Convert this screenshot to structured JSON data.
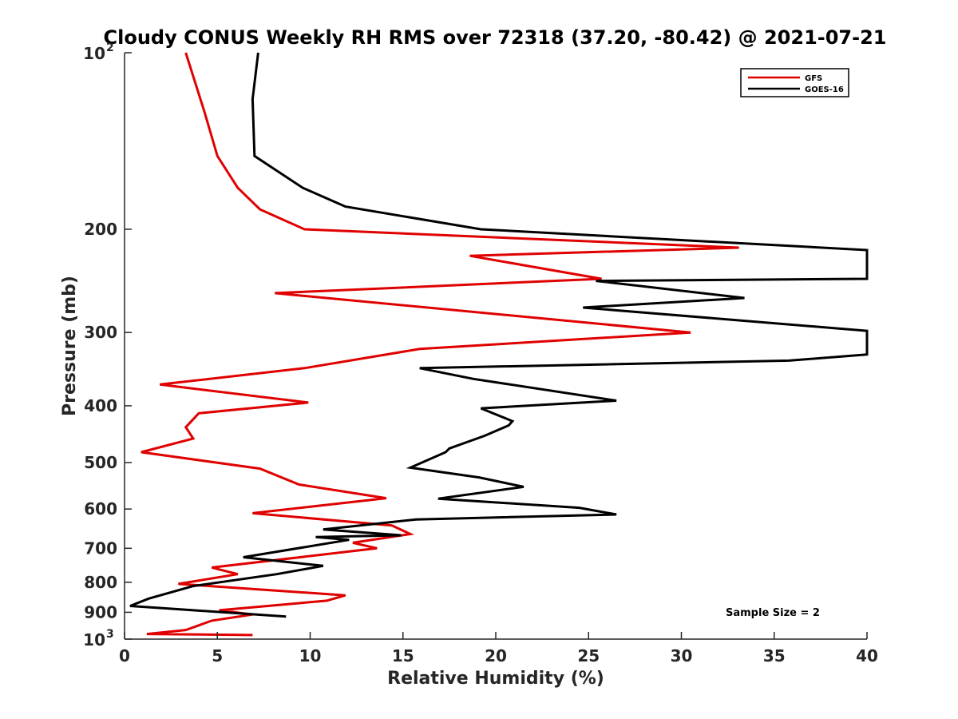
{
  "chart_data": {
    "type": "line",
    "title": "Cloudy CONUS Weekly RH RMS over 72318 (37.20, -80.42) @ 2021-07-21",
    "xlabel": "Relative Humidity (%)",
    "ylabel": "Pressure (mb)",
    "xlim": [
      0,
      40
    ],
    "ylim": [
      100,
      1000
    ],
    "yscale": "log",
    "yreversed": true,
    "xticks": [
      "0",
      "5",
      "10",
      "15",
      "20",
      "25",
      "30",
      "35",
      "40"
    ],
    "yticks": [
      {
        "value": 100,
        "base": "10",
        "exp": "2"
      },
      {
        "value": 200,
        "base": "200",
        "exp": ""
      },
      {
        "value": 300,
        "base": "300",
        "exp": ""
      },
      {
        "value": 400,
        "base": "400",
        "exp": ""
      },
      {
        "value": 500,
        "base": "500",
        "exp": ""
      },
      {
        "value": 600,
        "base": "600",
        "exp": ""
      },
      {
        "value": 700,
        "base": "700",
        "exp": ""
      },
      {
        "value": 800,
        "base": "800",
        "exp": ""
      },
      {
        "value": 900,
        "base": "900",
        "exp": ""
      },
      {
        "value": 1000,
        "base": "10",
        "exp": "3"
      }
    ],
    "legend": {
      "location": "top-right"
    },
    "annotation": "Sample Size = 2",
    "series": [
      {
        "name": "GFS",
        "color": "#e00000",
        "x": [
          3.3,
          4.3,
          5.0,
          6.1,
          7.3,
          9.7,
          33.1,
          18.6,
          25.7,
          8.1,
          30.5,
          15.9,
          9.7,
          1.9,
          9.9,
          4.0,
          3.3,
          3.7,
          0.9,
          7.3,
          9.4,
          14.1,
          6.9,
          14.4,
          15.4,
          12.3,
          13.6,
          4.7,
          6.1,
          2.9,
          11.9,
          10.9,
          5.1,
          6.9,
          4.7,
          3.3,
          1.2,
          6.9
        ],
        "y": [
          100,
          126,
          150,
          170,
          185,
          200,
          215,
          222,
          243,
          257,
          300,
          320,
          345,
          368,
          395,
          412,
          435,
          455,
          480,
          512,
          545,
          575,
          610,
          640,
          662,
          685,
          700,
          755,
          775,
          805,
          842,
          860,
          893,
          908,
          930,
          965,
          980,
          984
        ]
      },
      {
        "name": "GOES-16",
        "color": "#000000",
        "x": [
          7.2,
          6.9,
          7.0,
          9.6,
          11.9,
          19.2,
          40.0,
          40.0,
          25.4,
          33.4,
          24.7,
          40.0,
          40.0,
          35.8,
          15.9,
          18.8,
          26.5,
          19.2,
          20.9,
          20.7,
          19.4,
          17.5,
          17.3,
          15.4,
          19.1,
          21.5,
          16.9,
          24.5,
          26.5,
          15.7,
          10.7,
          14.9,
          10.3,
          12.1,
          6.4,
          10.7,
          8.2,
          3.7,
          1.3,
          0.3,
          8.7
        ],
        "y": [
          100,
          120,
          150,
          170,
          183,
          200,
          217,
          243,
          245,
          262,
          272,
          298,
          327,
          335,
          345,
          360,
          392,
          404,
          425,
          432,
          450,
          473,
          480,
          510,
          530,
          550,
          576,
          597,
          613,
          625,
          650,
          665,
          670,
          677,
          725,
          750,
          775,
          812,
          853,
          878,
          915
        ]
      }
    ]
  }
}
